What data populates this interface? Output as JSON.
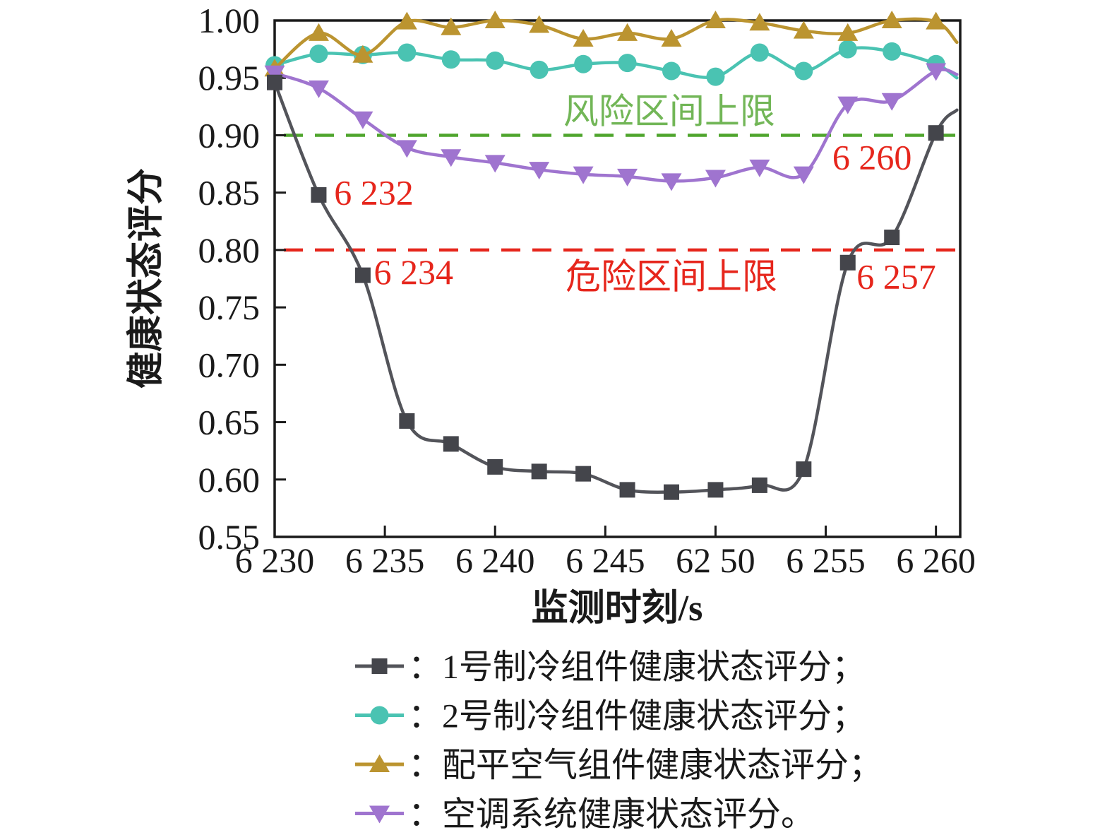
{
  "chart_data": {
    "type": "line",
    "title": "",
    "xlabel": "监测时刻/s",
    "ylabel": "健康状态评分",
    "xlim": [
      6230,
      6261.1
    ],
    "ylim": [
      0.55,
      1.0
    ],
    "grid": false,
    "legend_position": "bottom-left",
    "x": [
      6230,
      6232,
      6234,
      6236,
      6238,
      6240,
      6242,
      6244,
      6246,
      6248,
      6250,
      6252,
      6254,
      6256,
      6258,
      6260
    ],
    "x_ticks": [
      {
        "x": 6230,
        "label": "6 230",
        "tick": false
      },
      {
        "x": 6235,
        "label": "6 235",
        "tick": true
      },
      {
        "x": 6240,
        "label": "6 240",
        "tick": true
      },
      {
        "x": 6245,
        "label": "6 245",
        "tick": true
      },
      {
        "x": 6250,
        "label": "62 50",
        "tick": true
      },
      {
        "x": 6255,
        "label": "6 255",
        "tick": true
      },
      {
        "x": 6260,
        "label": "6 260",
        "tick": true
      }
    ],
    "y_ticks": [
      {
        "v": 1.0,
        "label": "1.00"
      },
      {
        "v": 0.95,
        "label": "0.95"
      },
      {
        "v": 0.9,
        "label": "0.90"
      },
      {
        "v": 0.85,
        "label": "0.85"
      },
      {
        "v": 0.8,
        "label": "0.80"
      },
      {
        "v": 0.75,
        "label": "0.75"
      },
      {
        "v": 0.7,
        "label": "0.70"
      },
      {
        "v": 0.65,
        "label": "0.65"
      },
      {
        "v": 0.6,
        "label": "0.60"
      },
      {
        "v": 0.55,
        "label": "0.55"
      }
    ],
    "series": [
      {
        "name": "2号制冷组件健康状态评分",
        "marker": "circle",
        "color": "#4ac3b2",
        "values": [
          0.961,
          0.971,
          0.97,
          0.972,
          0.966,
          0.965,
          0.957,
          0.962,
          0.963,
          0.956,
          0.951,
          0.972,
          0.956,
          0.975,
          0.973,
          0.962
        ],
        "end_value": 0.95
      },
      {
        "name": "配平空气组件健康状态评分",
        "marker": "triangle-up",
        "color": "#bb9430",
        "values": [
          0.958,
          0.989,
          0.97,
          0.999,
          0.994,
          1.0,
          0.996,
          0.984,
          0.989,
          0.984,
          1.0,
          0.998,
          0.991,
          0.989,
          1.0,
          0.999
        ],
        "end_value": 0.981
      },
      {
        "name": "空调系统健康状态评分",
        "marker": "triangle-down",
        "color": "#9f74cf",
        "values": [
          0.954,
          0.941,
          0.914,
          0.889,
          0.881,
          0.876,
          0.87,
          0.866,
          0.864,
          0.86,
          0.863,
          0.872,
          0.866,
          0.927,
          0.93,
          0.956
        ],
        "end_value": 0.953
      },
      {
        "name": "1号制冷组件健康状态评分",
        "marker": "square",
        "color": "#44454b",
        "line_color": "#53545a",
        "values": [
          0.946,
          0.848,
          0.778,
          0.651,
          0.631,
          0.611,
          0.607,
          0.605,
          0.591,
          0.589,
          0.591,
          0.595,
          0.609,
          0.789,
          0.811,
          0.902
        ],
        "end_value": 0.922
      }
    ],
    "reference_lines": [
      {
        "value": 0.9,
        "label": "风险区间上限",
        "line_color": "#4fa52d",
        "text_color": "#72b657",
        "label_x": 6247.9,
        "label_y": 0.921
      },
      {
        "value": 0.8,
        "label": "危险区间上限",
        "line_color": "#e6261c",
        "text_color": "#e6261c",
        "label_x": 6248.0,
        "label_y": 0.777
      }
    ],
    "annotations": [
      {
        "text": "6 232",
        "x": 6234.5,
        "y": 0.85,
        "color": "#e6261c"
      },
      {
        "text": "6 234",
        "x": 6236.3,
        "y": 0.781,
        "color": "#e6261c"
      },
      {
        "text": "6 257",
        "x": 6258.2,
        "y": 0.777,
        "color": "#e6261c"
      },
      {
        "text": "6 260",
        "x": 6257.1,
        "y": 0.881,
        "color": "#e6261c"
      }
    ],
    "legend": [
      {
        "marker": "square",
        "color": "#44454b",
        "line_color": "#53545a",
        "label": "：1号制冷组件健康状态评分；"
      },
      {
        "marker": "circle",
        "color": "#4ac3b2",
        "line_color": "#4ac3b2",
        "label": "：2号制冷组件健康状态评分；"
      },
      {
        "marker": "triangle-up",
        "color": "#bb9430",
        "line_color": "#bb9430",
        "label": "：配平空气组件健康状态评分；"
      },
      {
        "marker": "triangle-down",
        "color": "#9f74cf",
        "line_color": "#9f74cf",
        "label": "：空调系统健康状态评分。"
      }
    ],
    "colors": {
      "axis": "#1a1a1a",
      "text": "#1a1a1a",
      "background": "#ffffff"
    }
  }
}
